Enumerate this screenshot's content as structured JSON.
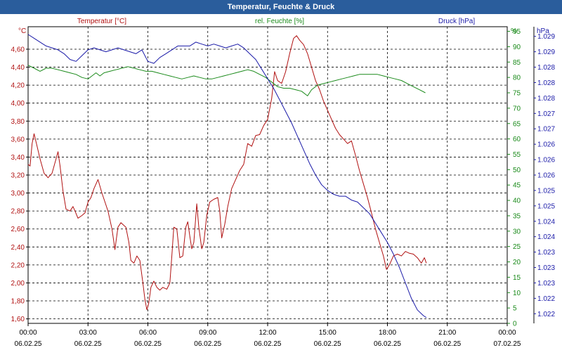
{
  "window": {
    "title": "Temperatur, Feuchte & Druck"
  },
  "chart_data": {
    "type": "line",
    "title": "Temperatur, Feuchte & Druck",
    "grid": true,
    "x": {
      "tick_times": [
        "00:00",
        "03:00",
        "06:00",
        "09:00",
        "12:00",
        "15:00",
        "18:00",
        "21:00",
        "00:00"
      ],
      "tick_dates": [
        "06.02.25",
        "06.02.25",
        "06.02.25",
        "06.02.25",
        "06.02.25",
        "06.02.25",
        "06.02.25",
        "06.02.25",
        "07.02.25"
      ],
      "range_hours": [
        0,
        24
      ]
    },
    "axes": {
      "left": {
        "unit": "°C",
        "color": "#b01010",
        "range": [
          1.55,
          4.85
        ],
        "ticks": [
          1.6,
          1.8,
          2.0,
          2.2,
          2.4,
          2.6,
          2.8,
          3.0,
          3.2,
          3.4,
          3.6,
          3.8,
          4.0,
          4.2,
          4.4,
          4.6
        ],
        "tick_labels": [
          "1,60",
          "1,80",
          "2,00",
          "2,20",
          "2,40",
          "2,60",
          "2,80",
          "3,00",
          "3,20",
          "3,40",
          "3,60",
          "3,80",
          "4,00",
          "4,20",
          "4,40",
          "4,60"
        ]
      },
      "middle": {
        "unit": "%",
        "color": "#1a8a1a",
        "range": [
          0,
          96.5
        ],
        "ticks": [
          0,
          5,
          10,
          15,
          20,
          25,
          30,
          35,
          40,
          45,
          50,
          55,
          60,
          65,
          70,
          75,
          80,
          85,
          90,
          95
        ],
        "tick_labels": [
          "0",
          "5",
          "10",
          "15",
          "20",
          "25",
          "30",
          "35",
          "40",
          "45",
          "50",
          "55",
          "60",
          "65",
          "70",
          "75",
          "80",
          "85",
          "90",
          "95"
        ]
      },
      "right": {
        "unit": "hPa",
        "color": "#1a1aa8",
        "range": [
          1021.75,
          1029.45
        ],
        "ticks": [
          1022.0,
          1022.4,
          1022.8,
          1023.2,
          1023.6,
          1024.0,
          1024.4,
          1024.8,
          1025.2,
          1025.6,
          1026.0,
          1026.4,
          1026.8,
          1027.2,
          1027.6,
          1028.0,
          1028.4,
          1028.8,
          1029.2
        ],
        "tick_labels": [
          "1.022",
          "1.022",
          "1.023",
          "1.023",
          "1.023",
          "1.024",
          "1.024",
          "1.025",
          "1.025",
          "1.026",
          "1.026",
          "1.026",
          "1.027",
          "1.027",
          "1.028",
          "1.028",
          "1.028",
          "1.029",
          "1.029"
        ]
      }
    },
    "series": [
      {
        "name": "Temperatur [°C]",
        "axis": "left",
        "color": "#b01010",
        "points": [
          [
            0,
            3.32
          ],
          [
            0.1,
            3.3
          ],
          [
            0.2,
            3.55
          ],
          [
            0.3,
            3.66
          ],
          [
            0.45,
            3.52
          ],
          [
            0.6,
            3.38
          ],
          [
            0.8,
            3.22
          ],
          [
            1.0,
            3.17
          ],
          [
            1.2,
            3.22
          ],
          [
            1.4,
            3.38
          ],
          [
            1.5,
            3.46
          ],
          [
            1.6,
            3.3
          ],
          [
            1.75,
            3.02
          ],
          [
            1.9,
            2.82
          ],
          [
            2.1,
            2.8
          ],
          [
            2.25,
            2.85
          ],
          [
            2.35,
            2.8
          ],
          [
            2.5,
            2.72
          ],
          [
            2.7,
            2.75
          ],
          [
            2.85,
            2.78
          ],
          [
            3.0,
            2.9
          ],
          [
            3.15,
            2.95
          ],
          [
            3.3,
            3.05
          ],
          [
            3.5,
            3.15
          ],
          [
            3.7,
            3.0
          ],
          [
            3.85,
            2.9
          ],
          [
            4.0,
            2.8
          ],
          [
            4.2,
            2.6
          ],
          [
            4.35,
            2.37
          ],
          [
            4.5,
            2.62
          ],
          [
            4.65,
            2.67
          ],
          [
            4.9,
            2.62
          ],
          [
            5.05,
            2.45
          ],
          [
            5.15,
            2.25
          ],
          [
            5.3,
            2.22
          ],
          [
            5.45,
            2.3
          ],
          [
            5.6,
            2.25
          ],
          [
            5.75,
            2.0
          ],
          [
            5.85,
            1.82
          ],
          [
            5.95,
            1.7
          ],
          [
            6.05,
            1.78
          ],
          [
            6.15,
            1.95
          ],
          [
            6.3,
            2.02
          ],
          [
            6.45,
            1.95
          ],
          [
            6.6,
            1.92
          ],
          [
            6.75,
            1.95
          ],
          [
            6.95,
            1.93
          ],
          [
            7.1,
            2.0
          ],
          [
            7.2,
            2.3
          ],
          [
            7.3,
            2.62
          ],
          [
            7.45,
            2.6
          ],
          [
            7.6,
            2.28
          ],
          [
            7.75,
            2.3
          ],
          [
            7.9,
            2.62
          ],
          [
            8.0,
            2.68
          ],
          [
            8.1,
            2.52
          ],
          [
            8.2,
            2.38
          ],
          [
            8.3,
            2.45
          ],
          [
            8.45,
            2.88
          ],
          [
            8.55,
            2.62
          ],
          [
            8.7,
            2.38
          ],
          [
            8.8,
            2.45
          ],
          [
            8.95,
            2.75
          ],
          [
            9.1,
            2.9
          ],
          [
            9.3,
            2.93
          ],
          [
            9.5,
            2.95
          ],
          [
            9.6,
            2.8
          ],
          [
            9.7,
            2.5
          ],
          [
            9.85,
            2.65
          ],
          [
            10.0,
            2.85
          ],
          [
            10.2,
            3.05
          ],
          [
            10.4,
            3.15
          ],
          [
            10.6,
            3.25
          ],
          [
            10.8,
            3.32
          ],
          [
            11.0,
            3.55
          ],
          [
            11.2,
            3.52
          ],
          [
            11.4,
            3.64
          ],
          [
            11.6,
            3.65
          ],
          [
            11.8,
            3.75
          ],
          [
            12.0,
            3.82
          ],
          [
            12.2,
            4.05
          ],
          [
            12.35,
            4.35
          ],
          [
            12.5,
            4.25
          ],
          [
            12.7,
            4.22
          ],
          [
            12.9,
            4.35
          ],
          [
            13.1,
            4.55
          ],
          [
            13.3,
            4.72
          ],
          [
            13.45,
            4.75
          ],
          [
            13.6,
            4.7
          ],
          [
            13.8,
            4.65
          ],
          [
            14.0,
            4.55
          ],
          [
            14.2,
            4.4
          ],
          [
            14.4,
            4.25
          ],
          [
            14.6,
            4.15
          ],
          [
            14.8,
            4.02
          ],
          [
            15.0,
            3.92
          ],
          [
            15.2,
            3.82
          ],
          [
            15.4,
            3.72
          ],
          [
            15.6,
            3.65
          ],
          [
            15.8,
            3.6
          ],
          [
            16.0,
            3.55
          ],
          [
            16.2,
            3.58
          ],
          [
            16.4,
            3.42
          ],
          [
            16.6,
            3.25
          ],
          [
            16.8,
            3.1
          ],
          [
            17.0,
            2.95
          ],
          [
            17.2,
            2.78
          ],
          [
            17.4,
            2.6
          ],
          [
            17.6,
            2.45
          ],
          [
            17.8,
            2.3
          ],
          [
            17.95,
            2.15
          ],
          [
            18.1,
            2.2
          ],
          [
            18.3,
            2.3
          ],
          [
            18.5,
            2.32
          ],
          [
            18.7,
            2.3
          ],
          [
            18.9,
            2.35
          ],
          [
            19.1,
            2.33
          ],
          [
            19.3,
            2.32
          ],
          [
            19.5,
            2.28
          ],
          [
            19.7,
            2.22
          ],
          [
            19.85,
            2.28
          ],
          [
            19.95,
            2.22
          ]
        ]
      },
      {
        "name": "rel. Feuchte [%]",
        "axis": "middle",
        "color": "#1a8a1a",
        "points": [
          [
            0,
            84
          ],
          [
            0.3,
            83
          ],
          [
            0.6,
            82
          ],
          [
            0.9,
            83
          ],
          [
            1.2,
            83
          ],
          [
            1.5,
            82.5
          ],
          [
            1.8,
            82
          ],
          [
            2.1,
            81.5
          ],
          [
            2.4,
            81
          ],
          [
            2.7,
            80
          ],
          [
            3.0,
            79.5
          ],
          [
            3.2,
            80.5
          ],
          [
            3.4,
            81.5
          ],
          [
            3.6,
            80.5
          ],
          [
            3.8,
            81.5
          ],
          [
            4.1,
            82
          ],
          [
            4.4,
            82.5
          ],
          [
            4.7,
            83
          ],
          [
            5.0,
            83.5
          ],
          [
            5.3,
            83
          ],
          [
            5.6,
            82.5
          ],
          [
            5.9,
            82
          ],
          [
            6.2,
            82
          ],
          [
            6.5,
            81.5
          ],
          [
            6.8,
            81
          ],
          [
            7.1,
            80.5
          ],
          [
            7.4,
            80
          ],
          [
            7.7,
            79.5
          ],
          [
            8.0,
            80
          ],
          [
            8.3,
            80.5
          ],
          [
            8.6,
            80
          ],
          [
            8.9,
            79.5
          ],
          [
            9.2,
            79.5
          ],
          [
            9.5,
            80
          ],
          [
            9.8,
            80.5
          ],
          [
            10.1,
            81
          ],
          [
            10.4,
            81.5
          ],
          [
            10.7,
            82
          ],
          [
            11.0,
            82.5
          ],
          [
            11.3,
            82
          ],
          [
            11.6,
            81
          ],
          [
            11.9,
            80
          ],
          [
            12.2,
            78.5
          ],
          [
            12.5,
            77
          ],
          [
            12.8,
            76.5
          ],
          [
            13.1,
            76.5
          ],
          [
            13.4,
            76
          ],
          [
            13.7,
            75.5
          ],
          [
            14.0,
            74
          ],
          [
            14.2,
            76
          ],
          [
            14.5,
            77.5
          ],
          [
            14.8,
            78
          ],
          [
            15.1,
            78.5
          ],
          [
            15.4,
            79
          ],
          [
            15.7,
            79.5
          ],
          [
            16.0,
            80
          ],
          [
            16.3,
            80.5
          ],
          [
            16.6,
            81
          ],
          [
            16.9,
            81
          ],
          [
            17.2,
            81
          ],
          [
            17.5,
            81
          ],
          [
            17.8,
            80.5
          ],
          [
            18.1,
            80
          ],
          [
            18.4,
            79.5
          ],
          [
            18.7,
            79
          ],
          [
            19.0,
            78
          ],
          [
            19.3,
            77
          ],
          [
            19.6,
            76
          ],
          [
            19.9,
            75
          ]
        ]
      },
      {
        "name": "Druck [hPa]",
        "axis": "right",
        "color": "#1a1aa8",
        "points": [
          [
            0,
            1029.25
          ],
          [
            0.3,
            1029.15
          ],
          [
            0.6,
            1029.05
          ],
          [
            0.9,
            1028.95
          ],
          [
            1.2,
            1028.9
          ],
          [
            1.5,
            1028.85
          ],
          [
            1.8,
            1028.75
          ],
          [
            2.1,
            1028.6
          ],
          [
            2.4,
            1028.55
          ],
          [
            2.7,
            1028.7
          ],
          [
            3.0,
            1028.85
          ],
          [
            3.3,
            1028.9
          ],
          [
            3.6,
            1028.85
          ],
          [
            3.9,
            1028.8
          ],
          [
            4.2,
            1028.85
          ],
          [
            4.5,
            1028.9
          ],
          [
            4.8,
            1028.85
          ],
          [
            5.1,
            1028.8
          ],
          [
            5.4,
            1028.75
          ],
          [
            5.7,
            1028.85
          ],
          [
            6.0,
            1028.55
          ],
          [
            6.3,
            1028.5
          ],
          [
            6.6,
            1028.65
          ],
          [
            6.9,
            1028.75
          ],
          [
            7.2,
            1028.85
          ],
          [
            7.5,
            1028.95
          ],
          [
            7.8,
            1028.95
          ],
          [
            8.1,
            1028.95
          ],
          [
            8.4,
            1029.05
          ],
          [
            8.7,
            1029.0
          ],
          [
            9.0,
            1028.95
          ],
          [
            9.3,
            1029.0
          ],
          [
            9.6,
            1028.95
          ],
          [
            9.9,
            1028.9
          ],
          [
            10.2,
            1028.95
          ],
          [
            10.5,
            1029.0
          ],
          [
            10.8,
            1028.9
          ],
          [
            11.1,
            1028.75
          ],
          [
            11.4,
            1028.6
          ],
          [
            11.7,
            1028.35
          ],
          [
            12.0,
            1028.1
          ],
          [
            12.3,
            1027.85
          ],
          [
            12.6,
            1027.55
          ],
          [
            12.9,
            1027.25
          ],
          [
            13.2,
            1026.95
          ],
          [
            13.5,
            1026.6
          ],
          [
            13.8,
            1026.25
          ],
          [
            14.1,
            1025.9
          ],
          [
            14.4,
            1025.6
          ],
          [
            14.7,
            1025.35
          ],
          [
            15.0,
            1025.2
          ],
          [
            15.3,
            1025.1
          ],
          [
            15.6,
            1025.05
          ],
          [
            15.9,
            1025.05
          ],
          [
            16.2,
            1024.95
          ],
          [
            16.5,
            1024.9
          ],
          [
            16.8,
            1024.75
          ],
          [
            17.1,
            1024.6
          ],
          [
            17.4,
            1024.35
          ],
          [
            17.7,
            1024.1
          ],
          [
            18.0,
            1023.85
          ],
          [
            18.3,
            1023.55
          ],
          [
            18.6,
            1023.2
          ],
          [
            18.9,
            1022.8
          ],
          [
            19.2,
            1022.4
          ],
          [
            19.5,
            1022.1
          ],
          [
            19.8,
            1021.95
          ],
          [
            19.95,
            1021.9
          ]
        ]
      }
    ]
  }
}
